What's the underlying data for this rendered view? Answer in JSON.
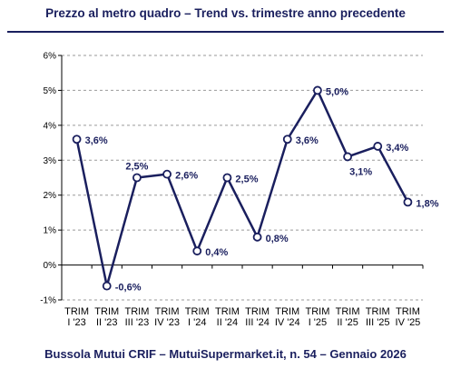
{
  "header": {
    "title": "Prezzo al metro quadro – Trend vs. trimestre anno precedente"
  },
  "footer": {
    "text": "Bussola Mutui CRIF – MutuiSupermarket.it, n. 54 – Gennaio 2026"
  },
  "colors": {
    "line": "#1a1f5e",
    "grid": "#9a9a9a",
    "text": "#1a1f5e"
  },
  "chart_data": {
    "type": "line",
    "title": "Prezzo al metro quadro – Trend vs. trimestre anno precedente",
    "categories": [
      [
        "TRIM",
        "I '23"
      ],
      [
        "TRIM",
        "II '23"
      ],
      [
        "TRIM",
        "III '23"
      ],
      [
        "TRIM",
        "IV '23"
      ],
      [
        "TRIM",
        "I '24"
      ],
      [
        "TRIM",
        "II '24"
      ],
      [
        "TRIM",
        "III '24"
      ],
      [
        "TRIM",
        "IV '24"
      ],
      [
        "TRIM",
        "I '25"
      ],
      [
        "TRIM",
        "II '25"
      ],
      [
        "TRIM",
        "III '25"
      ],
      [
        "TRIM",
        "IV '25"
      ]
    ],
    "values": [
      3.6,
      -0.6,
      2.5,
      2.6,
      0.4,
      2.5,
      0.8,
      3.6,
      5.0,
      3.1,
      3.4,
      1.8
    ],
    "data_labels": [
      "3,6%",
      "-0,6%",
      "2,5%",
      "2,6%",
      "0,4%",
      "2,5%",
      "0,8%",
      "3,6%",
      "5,0%",
      "3,1%",
      "3,4%",
      "1,8%"
    ],
    "yticks": [
      -1,
      0,
      1,
      2,
      3,
      4,
      5,
      6
    ],
    "ytick_labels": [
      "-1%",
      "0%",
      "1%",
      "2%",
      "3%",
      "4%",
      "5%",
      "6%"
    ],
    "ylim": [
      -1,
      6
    ],
    "xlabel": "",
    "ylabel": "",
    "grid": true,
    "legend": "none"
  }
}
